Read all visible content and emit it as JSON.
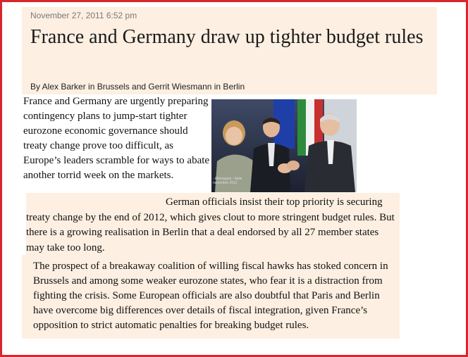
{
  "article": {
    "timestamp": "November 27, 2011 6:52 pm",
    "headline": "France and Germany draw up tighter budget rules",
    "byline": "By Alex Barker in Brussels and Gerrit Wiesmann in Berlin",
    "paragraphs": [
      "France and Germany are urgently preparing contingency plans to jump-start tighter eurozone economic governance should treaty change prove too difficult, as Europe’s leaders scramble for ways to abate another torrid week on the markets.",
      "German officials insist their top priority is securing treaty change by the end of 2012, which gives clout to more stringent budget rules. But there is a growing realisation in Berlin that a deal endorsed by all 27 member states may take too long.",
      "The prospect of a breakaway coalition of willing fiscal hawks has stoked concern in Brussels and among some weaker eurozone states, who fear it is a distraction from fighting the crisis. Some European officials are also doubtful that Paris and Berlin have overcome big differences over details of fiscal integration, given France’s opposition to strict automatic penalties for breaking budget rules."
    ],
    "photo": {
      "caption_text": "- Allemagne - Italie",
      "caption_date": "novembre 2011"
    }
  },
  "colors": {
    "frame": "#d9262b",
    "panel": "#fdefe1",
    "timestamp": "#7a7a7a"
  }
}
